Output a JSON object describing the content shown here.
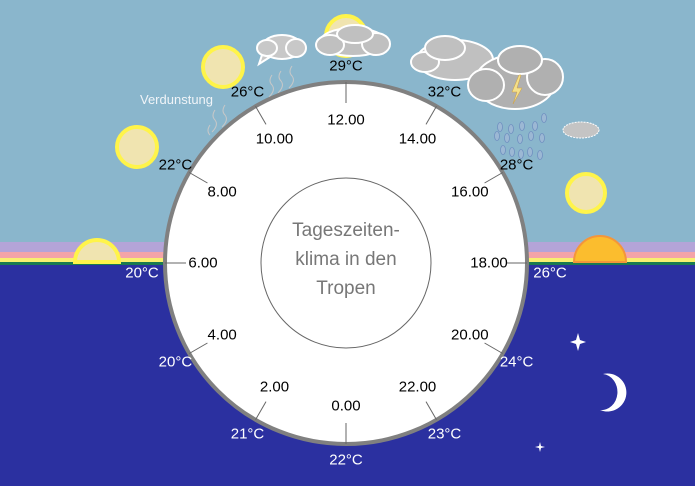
{
  "title": "Tageszeiten-klima in den Tropen",
  "title_lines": [
    "Tageszeiten-",
    "klima in den",
    "Tropen"
  ],
  "evaporation_label": "Verdunstung",
  "hours": [
    {
      "hour": 0,
      "label": "0.00"
    },
    {
      "hour": 2,
      "label": "2.00"
    },
    {
      "hour": 4,
      "label": "4.00"
    },
    {
      "hour": 6,
      "label": "6.00"
    },
    {
      "hour": 8,
      "label": "8.00"
    },
    {
      "hour": 10,
      "label": "10.00"
    },
    {
      "hour": 12,
      "label": "12.00"
    },
    {
      "hour": 14,
      "label": "14.00"
    },
    {
      "hour": 16,
      "label": "16.00"
    },
    {
      "hour": 18,
      "label": "18.00"
    },
    {
      "hour": 20,
      "label": "20.00"
    },
    {
      "hour": 22,
      "label": "22.00"
    }
  ],
  "temperatures": [
    {
      "hour": 0,
      "label": "22°C"
    },
    {
      "hour": 2,
      "label": "21°C"
    },
    {
      "hour": 4,
      "label": "20°C"
    },
    {
      "hour": 6,
      "label": "20°C"
    },
    {
      "hour": 8,
      "label": "22°C"
    },
    {
      "hour": 10,
      "label": "26°C"
    },
    {
      "hour": 12,
      "label": "29°C"
    },
    {
      "hour": 14,
      "label": "32°C"
    },
    {
      "hour": 16,
      "label": "28°C"
    },
    {
      "hour": 18,
      "label": "26°C"
    },
    {
      "hour": 20,
      "label": "24°C"
    },
    {
      "hour": 22,
      "label": "23°C"
    }
  ],
  "colors": {
    "sky": "#8ab6cc",
    "night": "#2b30a0",
    "ring": "#808080",
    "sun": "#f0e4b0",
    "sun_rim": "#fff44a",
    "cloud": "#c0c0c0",
    "storm_cloud": "#b0b0b0"
  }
}
